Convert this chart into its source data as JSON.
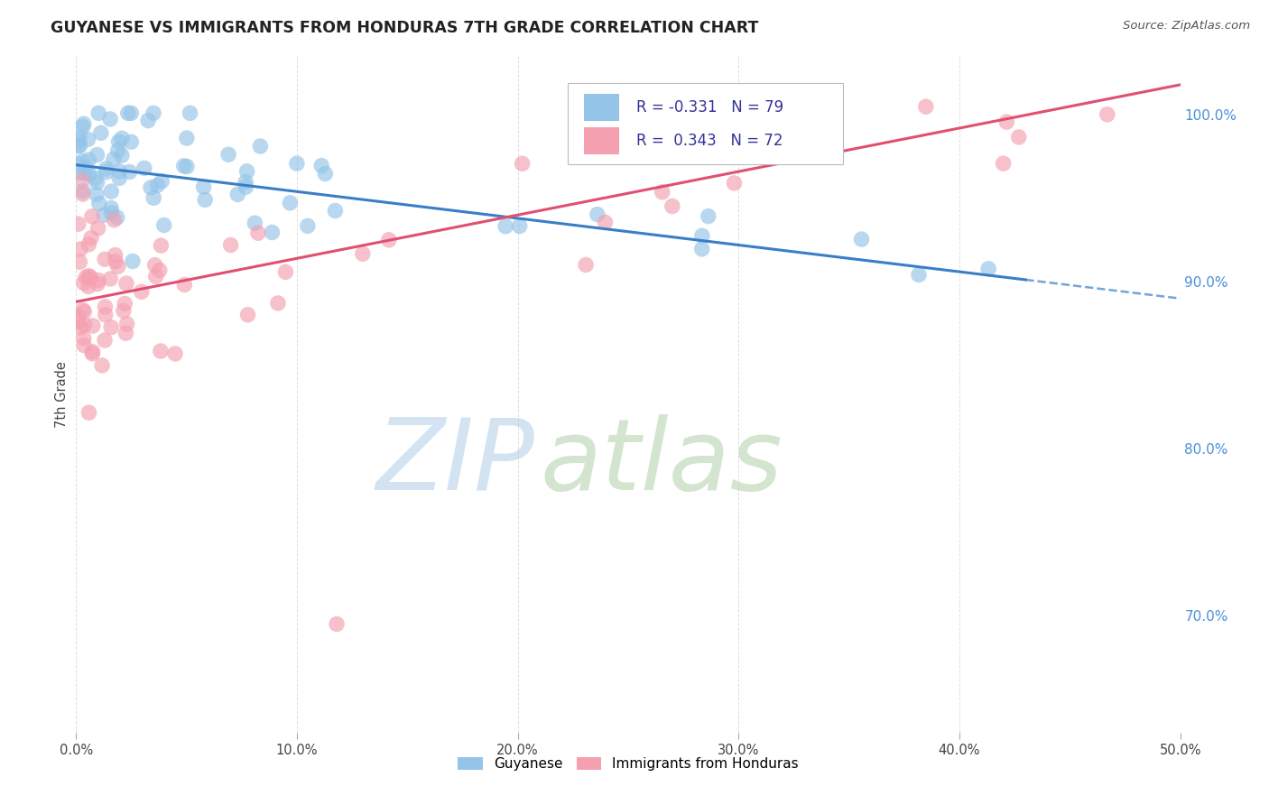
{
  "title": "GUYANESE VS IMMIGRANTS FROM HONDURAS 7TH GRADE CORRELATION CHART",
  "source": "Source: ZipAtlas.com",
  "ylabel": "7th Grade",
  "color_blue": "#94C4E8",
  "color_pink": "#F4A0B0",
  "trendline_blue_color": "#3A7EC8",
  "trendline_pink_color": "#E05070",
  "xlim": [
    0.0,
    0.5
  ],
  "ylim": [
    0.63,
    1.035
  ],
  "yticks": [
    1.0,
    0.9,
    0.8,
    0.7
  ],
  "ytick_labels": [
    "100.0%",
    "90.0%",
    "80.0%",
    "70.0%"
  ],
  "xticks": [
    0.0,
    0.1,
    0.2,
    0.3,
    0.4,
    0.5
  ],
  "xtick_labels": [
    "0.0%",
    "10.0%",
    "20.0%",
    "30.0%",
    "40.0%",
    "50.0%"
  ],
  "background_color": "#ffffff",
  "grid_color": "#dddddd",
  "watermark_zip_color": "#B8D4EE",
  "watermark_atlas_color": "#C8E4B8",
  "legend_r1": "R = -0.331",
  "legend_n1": "N = 79",
  "legend_r2": "R =  0.343",
  "legend_n2": "N = 72",
  "bottom_legend_labels": [
    "Guyanese",
    "Immigrants from Honduras"
  ]
}
